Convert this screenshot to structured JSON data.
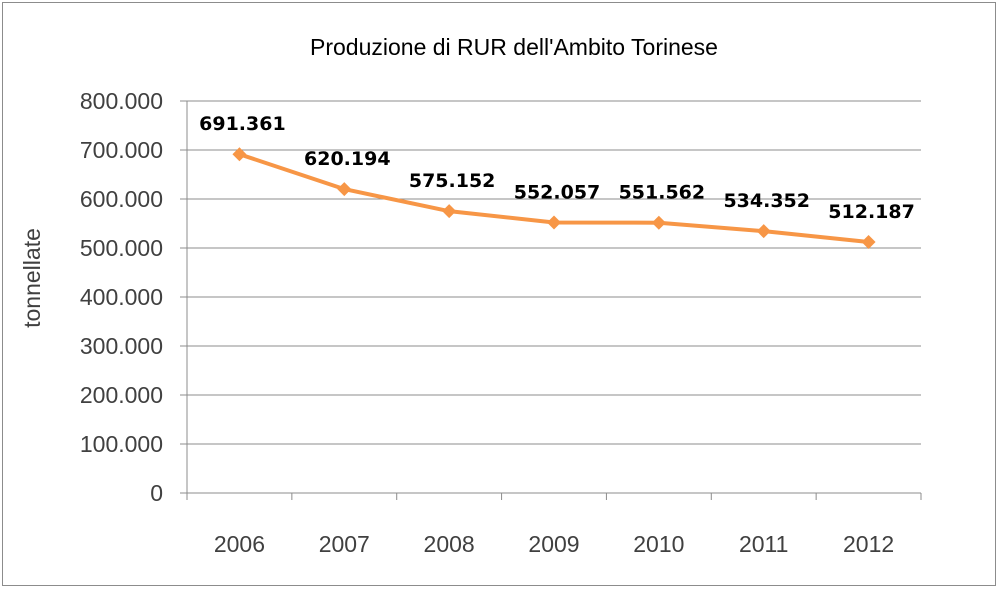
{
  "chart_data": {
    "type": "line",
    "title": "Produzione di RUR dell'Ambito Torinese",
    "xlabel": "",
    "ylabel": "tonnellate",
    "categories": [
      "2006",
      "2007",
      "2008",
      "2009",
      "2010",
      "2011",
      "2012"
    ],
    "series": [
      {
        "values": [
          691361,
          620194,
          575152,
          552057,
          551562,
          534352,
          512187
        ],
        "labels": [
          "691.361",
          "620.194",
          "575.152",
          "552.057",
          "551.562",
          "534.352",
          "512.187"
        ],
        "color": "#f79646",
        "marker": "diamond"
      }
    ],
    "ylim": [
      0,
      800000
    ],
    "yticks": [
      0,
      100000,
      200000,
      300000,
      400000,
      500000,
      600000,
      700000,
      800000
    ],
    "ytick_labels": [
      "0",
      "100.000",
      "200.000",
      "300.000",
      "400.000",
      "500.000",
      "600.000",
      "700.000",
      "800.000"
    ],
    "grid": true,
    "legend": "none"
  }
}
